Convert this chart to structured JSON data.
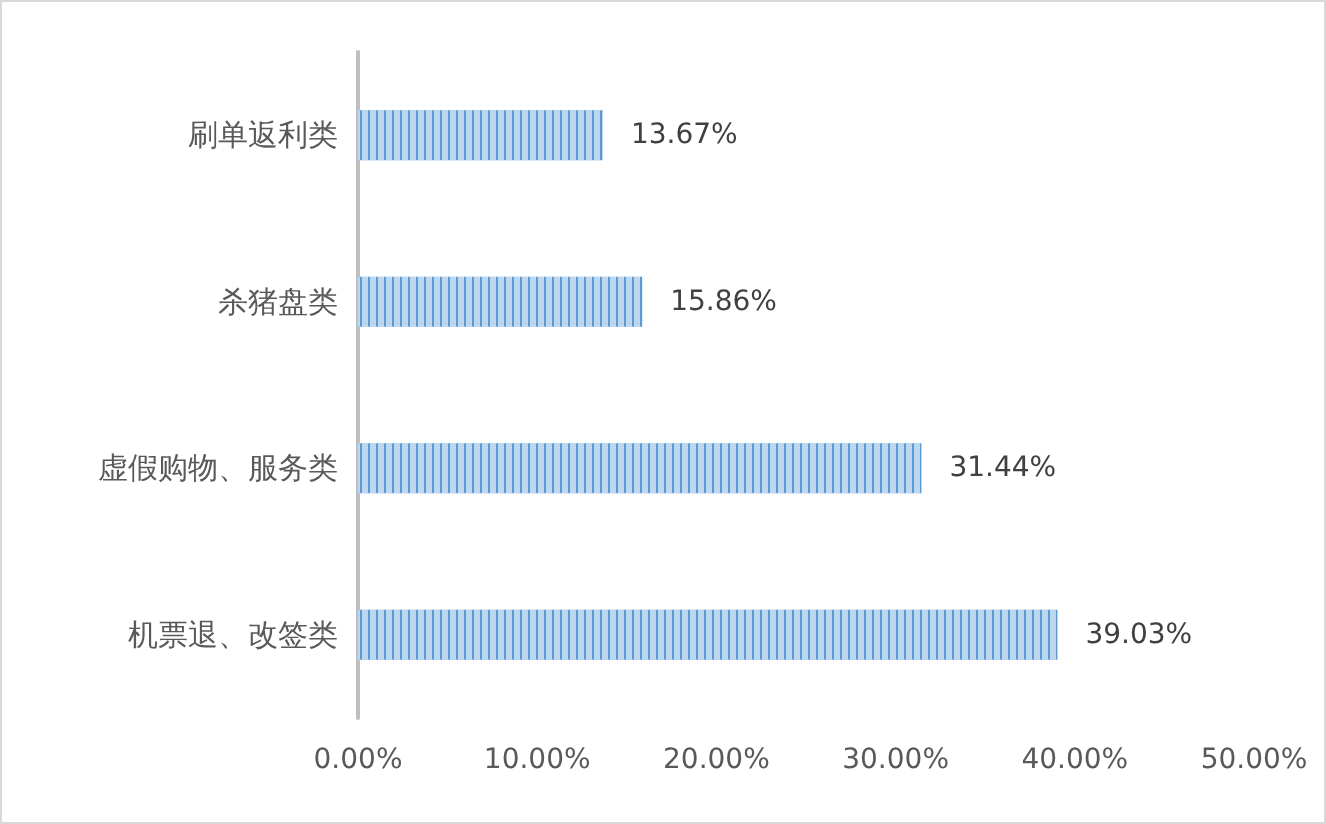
{
  "chart_data": {
    "type": "bar",
    "orientation": "horizontal",
    "categories": [
      "刷单返利类",
      "杀猪盘类",
      "虚假购物、服务类",
      "机票退、改签类"
    ],
    "values": [
      13.67,
      15.86,
      31.44,
      39.03
    ],
    "value_labels": [
      "13.67%",
      "15.86%",
      "31.44%",
      "39.03%"
    ],
    "color": "#5b9bd5",
    "xlim": [
      0,
      50
    ],
    "xticks": [
      {
        "value": 0,
        "label": "0.00%"
      },
      {
        "value": 10,
        "label": "10.00%"
      },
      {
        "value": 20,
        "label": "20.00%"
      },
      {
        "value": 30,
        "label": "30.00%"
      },
      {
        "value": 40,
        "label": "40.00%"
      },
      {
        "value": 50,
        "label": "50.00%"
      }
    ],
    "grid": false
  }
}
